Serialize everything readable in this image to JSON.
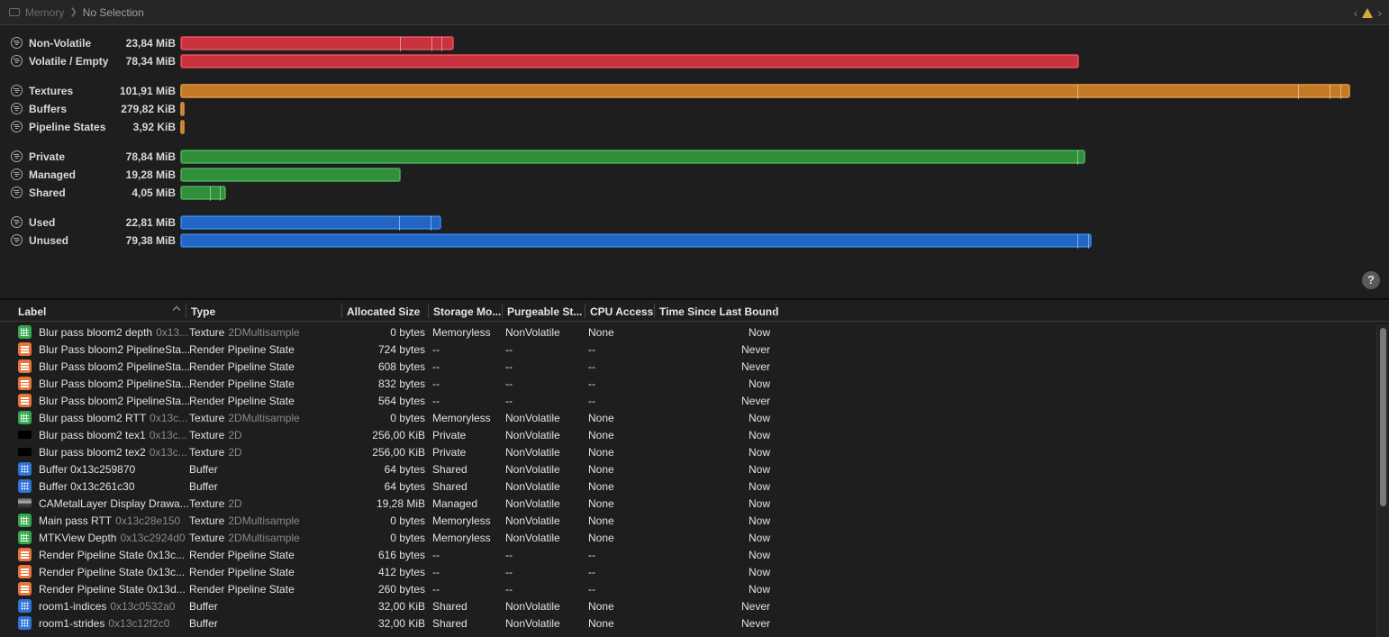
{
  "breadcrumb": {
    "section": "Memory",
    "selection": "No Selection"
  },
  "chart_rows": [
    {
      "label": "Non-Volatile",
      "value": "23,84 MiB",
      "color": "#c8333f"
    },
    {
      "label": "Volatile / Empty",
      "value": "78,34 MiB",
      "color": "#c8333f"
    },
    {
      "label": "Textures",
      "value": "101,91 MiB",
      "color": "#c47a24"
    },
    {
      "label": "Buffers",
      "value": "279,82 KiB",
      "color": "#c47a24"
    },
    {
      "label": "Pipeline States",
      "value": "3,92 KiB",
      "color": "#c47a24"
    },
    {
      "label": "Private",
      "value": "78,84 MiB",
      "color": "#2f8f3a"
    },
    {
      "label": "Managed",
      "value": "19,28 MiB",
      "color": "#2f8f3a"
    },
    {
      "label": "Shared",
      "value": "4,05 MiB",
      "color": "#2f8f3a"
    },
    {
      "label": "Used",
      "value": "22,81 MiB",
      "color": "#2066c4"
    },
    {
      "label": "Unused",
      "value": "79,38 MiB",
      "color": "#2066c4"
    }
  ],
  "help_label": "?",
  "table": {
    "columns": [
      "Label",
      "Type",
      "Allocated Size",
      "Storage Mo...",
      "Purgeable St...",
      "CPU Access",
      "Time Since Last Bound"
    ],
    "rows": [
      {
        "icon": "texture-icon",
        "name": "Blur pass bloom2 depth",
        "addr": "0x13...",
        "type": "Texture",
        "subtype": "2DMultisample",
        "size": "0 bytes",
        "storage": "Memoryless",
        "purgeable": "NonVolatile",
        "cpu": "None",
        "time": "Now"
      },
      {
        "icon": "pipeline-icon",
        "name": "Blur Pass bloom2 PipelineSta...",
        "addr": "",
        "type": "Render Pipeline State",
        "subtype": "",
        "size": "724 bytes",
        "storage": "--",
        "purgeable": "--",
        "cpu": "--",
        "time": "Never"
      },
      {
        "icon": "pipeline-icon",
        "name": "Blur Pass bloom2 PipelineSta...",
        "addr": "",
        "type": "Render Pipeline State",
        "subtype": "",
        "size": "608 bytes",
        "storage": "--",
        "purgeable": "--",
        "cpu": "--",
        "time": "Never"
      },
      {
        "icon": "pipeline-icon",
        "name": "Blur Pass bloom2 PipelineSta...",
        "addr": "",
        "type": "Render Pipeline State",
        "subtype": "",
        "size": "832 bytes",
        "storage": "--",
        "purgeable": "--",
        "cpu": "--",
        "time": "Now"
      },
      {
        "icon": "pipeline-icon",
        "name": "Blur Pass bloom2 PipelineSta...",
        "addr": "",
        "type": "Render Pipeline State",
        "subtype": "",
        "size": "564 bytes",
        "storage": "--",
        "purgeable": "--",
        "cpu": "--",
        "time": "Never"
      },
      {
        "icon": "texture-icon",
        "name": "Blur pass bloom2 RTT",
        "addr": "0x13c...",
        "type": "Texture",
        "subtype": "2DMultisample",
        "size": "0 bytes",
        "storage": "Memoryless",
        "purgeable": "NonVolatile",
        "cpu": "None",
        "time": "Now"
      },
      {
        "icon": "black-thumbnail-icon",
        "name": "Blur pass bloom2 tex1",
        "addr": "0x13c...",
        "type": "Texture",
        "subtype": "2D",
        "size": "256,00 KiB",
        "storage": "Private",
        "purgeable": "NonVolatile",
        "cpu": "None",
        "time": "Now"
      },
      {
        "icon": "black-thumbnail-icon",
        "name": "Blur pass bloom2 tex2",
        "addr": "0x13c...",
        "type": "Texture",
        "subtype": "2D",
        "size": "256,00 KiB",
        "storage": "Private",
        "purgeable": "NonVolatile",
        "cpu": "None",
        "time": "Now"
      },
      {
        "icon": "buffer-icon",
        "name": "Buffer 0x13c259870",
        "addr": "",
        "type": "Buffer",
        "subtype": "",
        "size": "64 bytes",
        "storage": "Shared",
        "purgeable": "NonVolatile",
        "cpu": "None",
        "time": "Now"
      },
      {
        "icon": "buffer-icon",
        "name": "Buffer 0x13c261c30",
        "addr": "",
        "type": "Buffer",
        "subtype": "",
        "size": "64 bytes",
        "storage": "Shared",
        "purgeable": "NonVolatile",
        "cpu": "None",
        "time": "Now"
      },
      {
        "icon": "image-thumbnail-icon",
        "name": "CAMetalLayer Display Drawa...",
        "addr": "",
        "type": "Texture",
        "subtype": "2D",
        "size": "19,28 MiB",
        "storage": "Managed",
        "purgeable": "NonVolatile",
        "cpu": "None",
        "time": "Now"
      },
      {
        "icon": "texture-icon",
        "name": "Main pass RTT",
        "addr": "0x13c28e150",
        "type": "Texture",
        "subtype": "2DMultisample",
        "size": "0 bytes",
        "storage": "Memoryless",
        "purgeable": "NonVolatile",
        "cpu": "None",
        "time": "Now"
      },
      {
        "icon": "texture-icon",
        "name": "MTKView Depth",
        "addr": "0x13c2924d0",
        "type": "Texture",
        "subtype": "2DMultisample",
        "size": "0 bytes",
        "storage": "Memoryless",
        "purgeable": "NonVolatile",
        "cpu": "None",
        "time": "Now"
      },
      {
        "icon": "pipeline-icon",
        "name": "Render Pipeline State 0x13c...",
        "addr": "",
        "type": "Render Pipeline State",
        "subtype": "",
        "size": "616 bytes",
        "storage": "--",
        "purgeable": "--",
        "cpu": "--",
        "time": "Now"
      },
      {
        "icon": "pipeline-icon",
        "name": "Render Pipeline State 0x13c...",
        "addr": "",
        "type": "Render Pipeline State",
        "subtype": "",
        "size": "412 bytes",
        "storage": "--",
        "purgeable": "--",
        "cpu": "--",
        "time": "Now"
      },
      {
        "icon": "pipeline-icon",
        "name": "Render Pipeline State 0x13d...",
        "addr": "",
        "type": "Render Pipeline State",
        "subtype": "",
        "size": "260 bytes",
        "storage": "--",
        "purgeable": "--",
        "cpu": "--",
        "time": "Now"
      },
      {
        "icon": "buffer-icon",
        "name": "room1-indices",
        "addr": "0x13c0532a0",
        "type": "Buffer",
        "subtype": "",
        "size": "32,00 KiB",
        "storage": "Shared",
        "purgeable": "NonVolatile",
        "cpu": "None",
        "time": "Never"
      },
      {
        "icon": "buffer-icon",
        "name": "room1-strides",
        "addr": "0x13c12f2c0",
        "type": "Buffer",
        "subtype": "",
        "size": "32,00 KiB",
        "storage": "Shared",
        "purgeable": "NonVolatile",
        "cpu": "None",
        "time": "Never"
      }
    ]
  }
}
